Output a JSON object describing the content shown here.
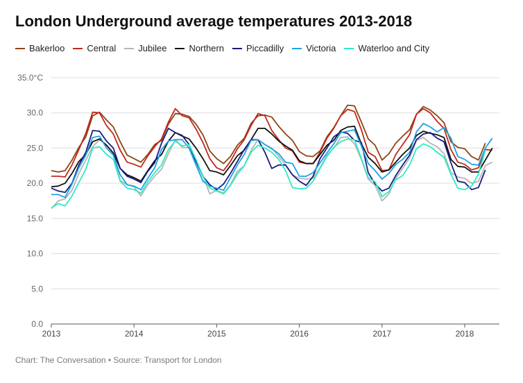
{
  "chart_data": {
    "type": "line",
    "title": "London Underground average temperatures 2013-2018",
    "source": "Chart: The Conversation • Source: Transport for London",
    "y_unit_label": "35.0°C",
    "ylim": [
      0,
      35
    ],
    "yticks": [
      "0.0",
      "5.0",
      "10.0",
      "15.0",
      "20.0",
      "25.0",
      "30.0"
    ],
    "xlim": [
      2013,
      2018.42
    ],
    "xticks": [
      "2013",
      "2014",
      "2015",
      "2016",
      "2017",
      "2018"
    ],
    "grid": true,
    "legend_position": "top-left",
    "series": [
      {
        "name": "Bakerloo",
        "color": "#8b4513",
        "start": 2013.0,
        "values": [
          21.8,
          21.6,
          21.8,
          23.3,
          25.1,
          26.6,
          29.6,
          30.1,
          29.0,
          28.0,
          25.9,
          24.0,
          23.5,
          23.0,
          24.1,
          25.5,
          26.1,
          28.4,
          29.9,
          29.8,
          29.5,
          28.4,
          26.9,
          24.6,
          23.5,
          22.8,
          23.8,
          25.4,
          26.4,
          28.5,
          29.6,
          29.7,
          29.4,
          28.1,
          27.0,
          26.1,
          24.5,
          23.9,
          23.8,
          24.6,
          26.6,
          27.9,
          29.6,
          31.1,
          31.0,
          28.7,
          26.3,
          25.4,
          23.3,
          24.2,
          25.7,
          26.7,
          27.6,
          29.8,
          30.9,
          30.4,
          29.6,
          28.6,
          25.9,
          25.1,
          24.9,
          23.8,
          23.3,
          25.7
        ]
      },
      {
        "name": "Central",
        "color": "#c0281c",
        "start": 2013.0,
        "values": [
          21.0,
          21.0,
          20.9,
          22.6,
          24.8,
          27.1,
          30.1,
          30.0,
          28.2,
          27.0,
          24.7,
          23.0,
          22.7,
          22.3,
          23.9,
          25.2,
          26.3,
          28.7,
          30.6,
          29.6,
          29.3,
          27.7,
          25.8,
          23.5,
          22.2,
          21.8,
          23.1,
          24.9,
          26.2,
          28.2,
          29.9,
          29.6,
          27.5,
          26.2,
          25.0,
          24.6,
          23.0,
          22.8,
          22.8,
          24.4,
          26.4,
          27.8,
          29.6,
          30.5,
          30.2,
          27.6,
          24.4,
          23.8,
          21.8,
          21.9,
          24.1,
          25.5,
          26.9,
          29.8,
          30.6,
          30.0,
          28.8,
          27.8,
          24.8,
          23.0,
          22.7,
          21.9,
          22.2,
          24.8,
          24.7
        ]
      },
      {
        "name": "Jubilee",
        "color": "#b5b5b5",
        "start": 2013.0,
        "values": [
          16.4,
          17.5,
          17.8,
          19.0,
          21.4,
          23.3,
          25.2,
          26.2,
          25.5,
          24.2,
          20.4,
          19.8,
          19.5,
          18.2,
          19.8,
          21.0,
          22.0,
          24.2,
          26.2,
          25.1,
          25.0,
          23.1,
          21.1,
          18.5,
          19.0,
          18.6,
          19.8,
          21.7,
          22.5,
          24.7,
          26.2,
          25.5,
          25.0,
          23.8,
          22.6,
          21.2,
          20.7,
          20.6,
          20.7,
          22.2,
          24.0,
          25.0,
          26.5,
          26.6,
          25.6,
          23.4,
          20.6,
          19.7,
          17.5,
          18.5,
          20.7,
          22.1,
          23.6,
          26.1,
          26.5,
          25.7,
          25.2,
          24.2,
          21.5,
          20.9,
          20.7,
          20.0,
          20.3,
          22.5,
          23.0
        ]
      },
      {
        "name": "Northern",
        "color": "#111111",
        "start": 2013.0,
        "values": [
          19.5,
          19.6,
          20.0,
          21.4,
          23.1,
          24.1,
          25.9,
          26.3,
          25.4,
          24.3,
          22.1,
          21.2,
          20.8,
          20.3,
          21.8,
          23.2,
          24.1,
          26.0,
          27.2,
          26.7,
          26.3,
          25.0,
          23.5,
          21.8,
          21.6,
          21.2,
          22.5,
          23.9,
          24.7,
          26.2,
          27.8,
          27.8,
          27.0,
          26.0,
          25.3,
          24.7,
          23.2,
          22.8,
          22.8,
          24.1,
          25.4,
          26.1,
          27.5,
          28.0,
          28.1,
          25.6,
          23.7,
          22.8,
          21.6,
          21.9,
          23.0,
          24.1,
          25.0,
          26.8,
          27.4,
          27.1,
          26.9,
          26.5,
          23.4,
          22.4,
          22.3,
          21.6,
          21.6,
          23.3,
          25.0
        ]
      },
      {
        "name": "Piccadilly",
        "color": "#1a1a80",
        "start": 2013.0,
        "values": [
          19.3,
          18.9,
          18.7,
          20.0,
          22.6,
          24.4,
          27.5,
          27.4,
          26.0,
          25.0,
          22.1,
          21.0,
          20.6,
          20.1,
          21.7,
          22.9,
          25.7,
          27.8,
          27.2,
          26.8,
          25.5,
          23.1,
          21.0,
          19.8,
          19.1,
          19.9,
          21.4,
          23.1,
          24.8,
          26.2,
          26.2,
          24.4,
          22.1,
          22.6,
          22.6,
          21.2,
          20.3,
          19.7,
          21.0,
          23.5,
          25.0,
          26.6,
          27.3,
          27.1,
          26.1,
          25.8,
          21.5,
          19.9,
          18.9,
          19.3,
          21.1,
          22.6,
          24.0,
          26.2,
          27.0,
          27.2,
          26.4,
          25.9,
          22.9,
          20.3,
          20.1,
          19.1,
          19.4,
          21.9
        ]
      },
      {
        "name": "Victoria",
        "color": "#1da1e6",
        "start": 2013.0,
        "values": [
          18.4,
          18.4,
          18.0,
          19.9,
          22.2,
          24.0,
          26.5,
          26.7,
          25.0,
          24.0,
          21.2,
          19.8,
          19.6,
          19.1,
          20.7,
          22.2,
          24.8,
          26.0,
          26.2,
          26.2,
          25.0,
          22.6,
          20.3,
          19.6,
          19.3,
          19.0,
          20.8,
          22.6,
          24.1,
          26.1,
          26.2,
          25.5,
          24.9,
          24.2,
          23.0,
          22.8,
          21.0,
          21.0,
          21.5,
          22.9,
          24.3,
          25.6,
          27.2,
          27.4,
          27.6,
          25.3,
          22.8,
          21.8,
          20.6,
          21.4,
          22.7,
          23.4,
          24.4,
          27.3,
          28.5,
          28.0,
          27.3,
          27.9,
          26.4,
          23.8,
          23.4,
          22.7,
          22.6,
          25.0,
          26.4
        ]
      },
      {
        "name": "Waterloo and City",
        "color": "#2bebc4",
        "start": 2013.0,
        "values": [
          16.5,
          17.1,
          16.8,
          18.2,
          20.1,
          22.0,
          25.0,
          25.2,
          24.1,
          23.4,
          20.3,
          19.3,
          19.1,
          18.6,
          20.2,
          21.5,
          22.6,
          24.8,
          26.0,
          25.3,
          25.5,
          23.4,
          21.0,
          19.3,
          18.9,
          18.5,
          19.7,
          21.3,
          22.5,
          24.4,
          25.4,
          25.0,
          24.4,
          23.4,
          21.8,
          19.4,
          19.2,
          19.3,
          20.3,
          22.1,
          23.8,
          25.1,
          25.9,
          26.3,
          26.2,
          23.5,
          20.8,
          20.2,
          18.1,
          18.8,
          20.5,
          21.1,
          22.6,
          24.9,
          25.6,
          25.2,
          24.4,
          23.7,
          21.3,
          19.3,
          19.1,
          19.6,
          21.3,
          24.7
        ]
      }
    ]
  }
}
